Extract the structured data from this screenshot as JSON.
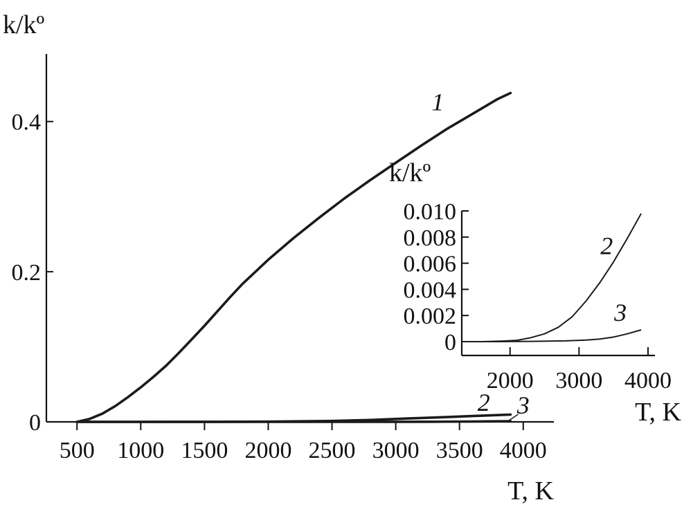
{
  "chart_data": [
    {
      "type": "line",
      "title": "",
      "xlabel": "T, K",
      "ylabel": "k/kº",
      "xlim": [
        260,
        4240
      ],
      "ylim": [
        0,
        0.49
      ],
      "xticks": [
        500,
        1000,
        1500,
        2000,
        2500,
        3000,
        3500,
        4000
      ],
      "yticks": [
        {
          "value": 0,
          "label": "0"
        },
        {
          "value": 0.2,
          "label": "0.2"
        },
        {
          "value": 0.4,
          "label": "0.4"
        }
      ],
      "grid": false,
      "legend": "none",
      "series": [
        {
          "name": "1",
          "x": [
            500,
            600,
            700,
            800,
            900,
            1000,
            1100,
            1200,
            1300,
            1400,
            1500,
            1600,
            1700,
            1800,
            1900,
            2000,
            2200,
            2400,
            2600,
            2800,
            3000,
            3200,
            3400,
            3600,
            3800,
            3900
          ],
          "values": [
            0.0,
            0.004,
            0.011,
            0.021,
            0.033,
            0.046,
            0.06,
            0.075,
            0.092,
            0.11,
            0.128,
            0.147,
            0.166,
            0.184,
            0.2,
            0.216,
            0.245,
            0.272,
            0.298,
            0.322,
            0.345,
            0.368,
            0.39,
            0.41,
            0.43,
            0.438
          ]
        },
        {
          "name": "2",
          "x": [
            500,
            1000,
            1500,
            2000,
            2500,
            2800,
            3100,
            3400,
            3600,
            3800,
            3900
          ],
          "values": [
            0,
            0,
            0.0001,
            0.0003,
            0.0012,
            0.0025,
            0.0045,
            0.0064,
            0.0077,
            0.009,
            0.0097
          ]
        },
        {
          "name": "3",
          "x": [
            500,
            1000,
            1500,
            2000,
            2500,
            3000,
            3300,
            3600,
            3800,
            3900
          ],
          "values": [
            0,
            0,
            0,
            1e-05,
            4e-05,
            0.00012,
            0.00022,
            0.00042,
            0.0007,
            0.0009
          ]
        }
      ]
    },
    {
      "type": "line",
      "title": "",
      "xlabel": "T, K",
      "ylabel": "k/kº",
      "xlim": [
        1300,
        4100
      ],
      "ylim": [
        0,
        0.01
      ],
      "xticks": [
        2000,
        3000,
        4000
      ],
      "yticks": [
        {
          "value": 0,
          "label": "0"
        },
        {
          "value": 0.002,
          "label": "0.002"
        },
        {
          "value": 0.004,
          "label": "0.004"
        },
        {
          "value": 0.006,
          "label": "0.006"
        },
        {
          "value": 0.008,
          "label": "0.008"
        },
        {
          "value": 0.01,
          "label": "0.010"
        }
      ],
      "grid": false,
      "legend": "none",
      "series": [
        {
          "name": "2",
          "x": [
            1300,
            1600,
            1900,
            2100,
            2300,
            2500,
            2700,
            2900,
            3100,
            3300,
            3500,
            3700,
            3900
          ],
          "values": [
            0,
            0,
            5e-05,
            0.0001,
            0.0003,
            0.0006,
            0.0011,
            0.0019,
            0.0031,
            0.0045,
            0.0061,
            0.0079,
            0.0098
          ]
        },
        {
          "name": "3",
          "x": [
            1300,
            1800,
            2300,
            2800,
            3100,
            3300,
            3500,
            3700,
            3900
          ],
          "values": [
            0,
            0,
            2e-05,
            6e-05,
            0.00012,
            0.0002,
            0.00035,
            0.0006,
            0.0009
          ]
        }
      ]
    }
  ]
}
